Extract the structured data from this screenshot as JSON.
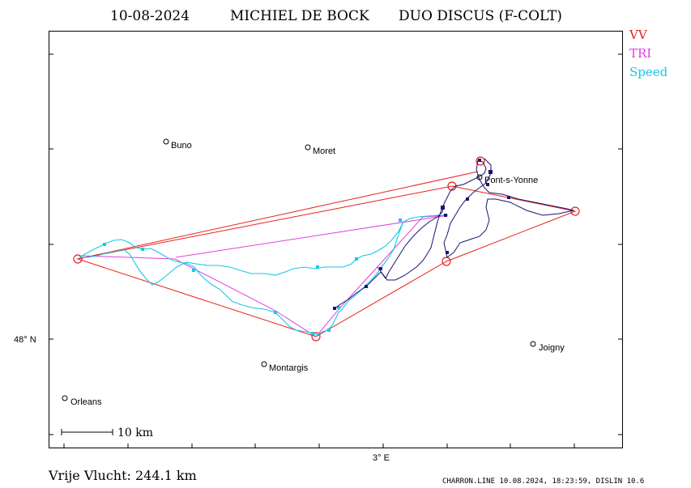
{
  "title": {
    "date": "10-08-2024",
    "pilot": "MICHIEL DE BOCK",
    "glider": "DUO DISCUS (F-COLT)"
  },
  "legend": [
    {
      "label": "VV",
      "color": "#e8201a"
    },
    {
      "label": "TRI",
      "color": "#e040e0"
    },
    {
      "label": "Speed",
      "color": "#18c8e8"
    }
  ],
  "towns": [
    {
      "name": "Buno"
    },
    {
      "name": "Moret"
    },
    {
      "name": "Pont-s-Yonne"
    },
    {
      "name": "Joigny"
    },
    {
      "name": "Montargis"
    },
    {
      "name": "Orleans"
    }
  ],
  "axes": {
    "y_label": "48° N",
    "x_label": "3° E"
  },
  "scale_bar": {
    "label": "10  km"
  },
  "footer": {
    "distance": "Vrije Vlucht:  244.1 km",
    "credit": "CHARRON.LINE 10.08.2024, 18:23:59, DISLIN 10.6"
  },
  "colors": {
    "frame": "#000000",
    "vv": "#e8201a",
    "tri": "#e040e0",
    "speed_track": "#18c8e8",
    "climb_track": "#1a1470"
  }
}
